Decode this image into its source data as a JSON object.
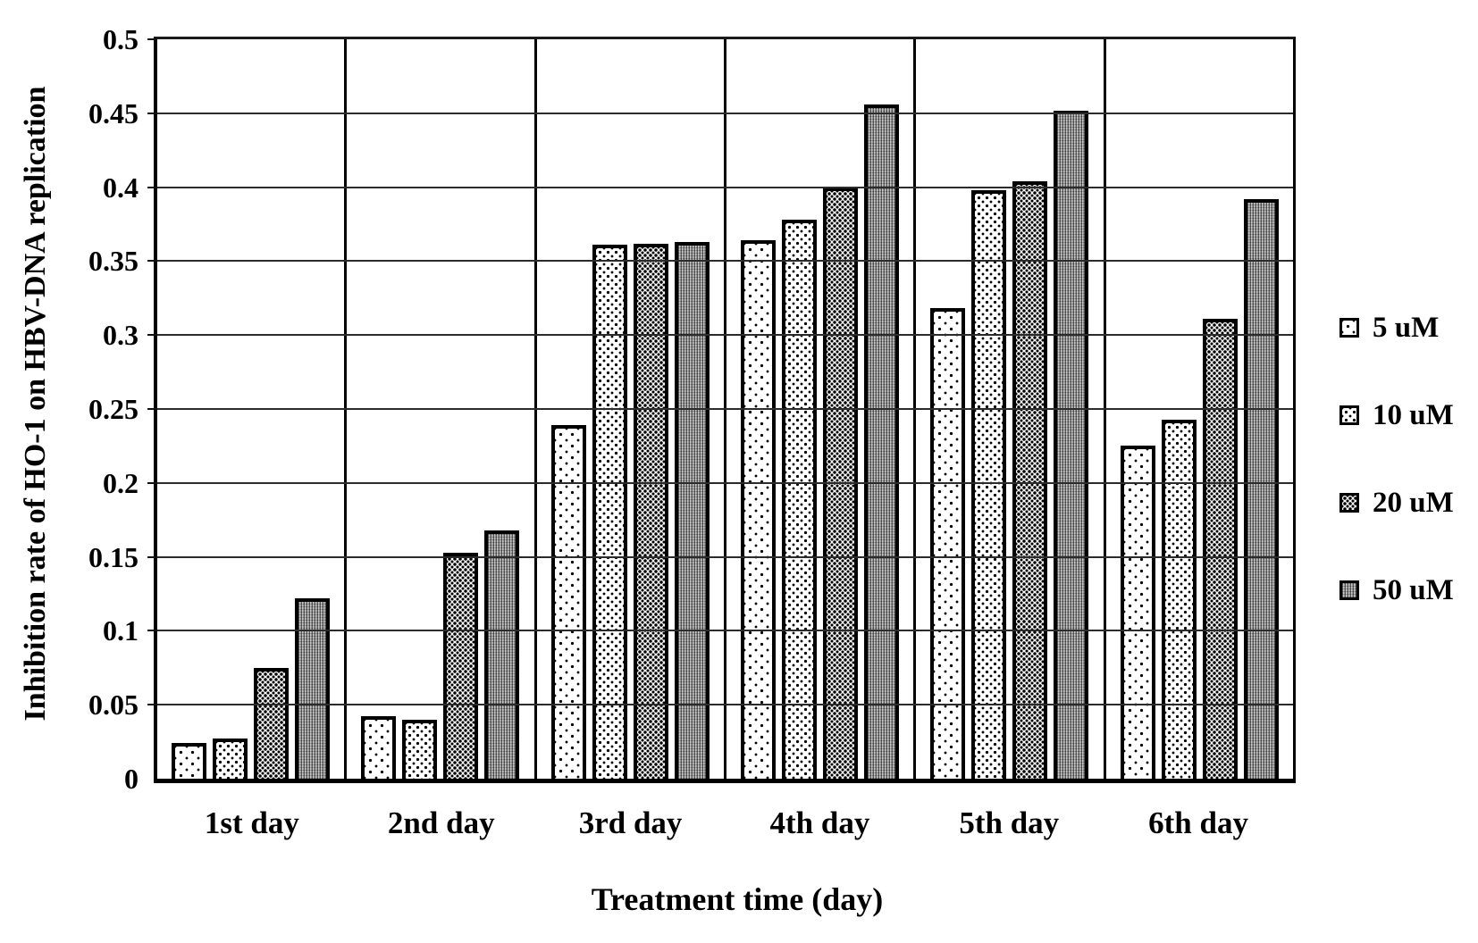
{
  "chart_data": {
    "type": "bar",
    "title": "",
    "ylabel": "Inhibition rate of HO-1 on HBV-DNA replication",
    "xlabel": "Treatment time (day)",
    "categories": [
      "1st day",
      "2nd day",
      "3rd day",
      "4th day",
      "5th day",
      "6th day"
    ],
    "series": [
      {
        "name": "5 uM",
        "values": [
          0.024,
          0.042,
          0.239,
          0.364,
          0.318,
          0.225
        ]
      },
      {
        "name": "10 uM",
        "values": [
          0.027,
          0.04,
          0.361,
          0.378,
          0.398,
          0.243
        ]
      },
      {
        "name": "20 uM",
        "values": [
          0.075,
          0.153,
          0.362,
          0.4,
          0.404,
          0.311
        ]
      },
      {
        "name": "50 uM",
        "values": [
          0.122,
          0.168,
          0.363,
          0.456,
          0.452,
          0.392
        ]
      }
    ],
    "ylim": [
      0,
      0.5
    ],
    "ytick_step": 0.05,
    "y_ticks": [
      "0",
      "0.05",
      "0.1",
      "0.15",
      "0.2",
      "0.25",
      "0.3",
      "0.35",
      "0.4",
      "0.45",
      "0.5"
    ],
    "grid": "horizontal",
    "legend_position": "right",
    "colors": {
      "ink": "#000000",
      "gridline": "#2b2b2b",
      "fill_50uM_gray": "#b2b2b2",
      "background": "#ffffff"
    }
  }
}
